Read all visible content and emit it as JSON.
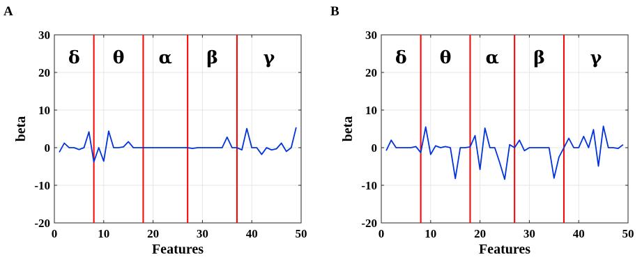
{
  "chart_data": [
    {
      "panel": "A",
      "type": "line",
      "xlabel": "Features",
      "ylabel": "beta",
      "xlim": [
        0,
        50
      ],
      "ylim": [
        -20,
        30
      ],
      "xticks": [
        0,
        10,
        20,
        30,
        40,
        50
      ],
      "yticks": [
        -20,
        -10,
        0,
        10,
        20,
        30
      ],
      "grid": true,
      "bands": [
        "δ",
        "θ",
        "α",
        "β",
        "γ"
      ],
      "band_boundaries": [
        8,
        18,
        27,
        37
      ],
      "boundary_color": "#ff0000",
      "line_color": "#0033dd",
      "x": [
        1,
        2,
        3,
        4,
        5,
        6,
        7,
        8,
        9,
        10,
        11,
        12,
        13,
        14,
        15,
        16,
        17,
        18,
        19,
        20,
        21,
        22,
        23,
        24,
        25,
        26,
        27,
        28,
        29,
        30,
        31,
        32,
        33,
        34,
        35,
        36,
        37,
        38,
        39,
        40,
        41,
        42,
        43,
        44,
        45,
        46,
        47,
        48,
        49
      ],
      "values": [
        -1.2,
        1.2,
        0,
        0,
        -0.5,
        0,
        4.2,
        -3.8,
        0,
        -3.6,
        4.4,
        0,
        0,
        0.2,
        1.6,
        0,
        0,
        0,
        0,
        0,
        0,
        0,
        0,
        0,
        0,
        0,
        0,
        -0.2,
        0,
        0,
        0,
        0,
        0,
        0,
        2.8,
        0,
        0,
        -0.6,
        5.1,
        0,
        0,
        -1.8,
        0,
        -0.6,
        -0.3,
        1.2,
        -1,
        0,
        5.4
      ]
    },
    {
      "panel": "B",
      "type": "line",
      "xlabel": "Features",
      "ylabel": "beta",
      "xlim": [
        0,
        50
      ],
      "ylim": [
        -20,
        30
      ],
      "xticks": [
        0,
        10,
        20,
        30,
        40,
        50
      ],
      "yticks": [
        -20,
        -10,
        0,
        10,
        20,
        30
      ],
      "grid": true,
      "bands": [
        "δ",
        "θ",
        "α",
        "β",
        "γ"
      ],
      "band_boundaries": [
        8,
        18,
        27,
        37
      ],
      "boundary_color": "#ff0000",
      "line_color": "#0033dd",
      "x": [
        1,
        2,
        3,
        4,
        5,
        6,
        7,
        8,
        9,
        10,
        11,
        12,
        13,
        14,
        15,
        16,
        17,
        18,
        19,
        20,
        21,
        22,
        23,
        24,
        25,
        26,
        27,
        28,
        29,
        30,
        31,
        32,
        33,
        34,
        35,
        36,
        37,
        38,
        39,
        40,
        41,
        42,
        43,
        44,
        45,
        46,
        47,
        48,
        49
      ],
      "values": [
        -0.8,
        2,
        0,
        0,
        0,
        0,
        0.3,
        -1.3,
        5.5,
        -1.8,
        0.5,
        0,
        0.3,
        0,
        -8.2,
        0,
        0,
        0.2,
        3.2,
        -5.8,
        5.2,
        0,
        0,
        -4,
        -8.4,
        0.8,
        0,
        2,
        -0.8,
        0,
        0,
        0,
        0,
        0,
        -8.1,
        -2.5,
        0,
        2.5,
        0,
        0,
        3,
        0,
        4.8,
        -4.9,
        5.7,
        0,
        0,
        -0.2,
        0.8
      ]
    }
  ]
}
